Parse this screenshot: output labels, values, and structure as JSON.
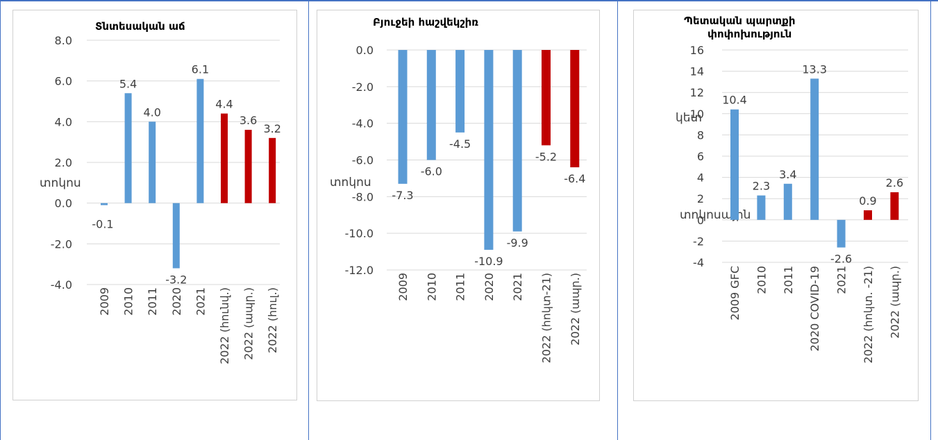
{
  "colors": {
    "blue": "#5b9bd5",
    "red": "#c00000",
    "grid": "#d9d9d9",
    "text": "#404040",
    "frame": "#4472c4"
  },
  "chart_data": [
    {
      "type": "bar",
      "title": "Տնտեսական աճ",
      "ylabel": "տոկոս",
      "ylim": [
        -4.0,
        8.0
      ],
      "yticks": [
        "-4.0",
        "-2.0",
        "0.0",
        "2.0",
        "4.0",
        "6.0",
        "8.0"
      ],
      "grid": true,
      "categories": [
        "2009",
        "2010",
        "2011",
        "2020",
        "2021",
        "2022 (հունվ.)",
        "2022 (ապր.)",
        "2022 (հուլ.)"
      ],
      "values": [
        -0.1,
        5.4,
        4.0,
        -3.2,
        6.1,
        4.4,
        3.6,
        3.2
      ],
      "value_labels": [
        "-0.1",
        "5.4",
        "4.0",
        "-3.2",
        "6.1",
        "4.4",
        "3.6",
        "3.2"
      ],
      "bar_colors": [
        "blue",
        "blue",
        "blue",
        "blue",
        "blue",
        "red",
        "red",
        "red"
      ]
    },
    {
      "type": "bar",
      "title": "Բյուջեի հաշվեկշիռ",
      "ylabel": "տոկոս",
      "ylim": [
        -12.0,
        0.0
      ],
      "yticks": [
        "-12.0",
        "-10.0",
        "-8.0",
        "-6.0",
        "-4.0",
        "-2.0",
        "0.0"
      ],
      "grid": true,
      "categories": [
        "2009",
        "2010",
        "2011",
        "2020",
        "2021",
        "2022 (հոկտ-21)",
        "2022 (ապր.)"
      ],
      "values": [
        -7.3,
        -6.0,
        -4.5,
        -10.9,
        -9.9,
        -5.2,
        -6.4
      ],
      "value_labels": [
        "-7.3",
        "-6.0",
        "-4.5",
        "-10.9",
        "-9.9",
        "-5.2",
        "-6.4"
      ],
      "bar_colors": [
        "blue",
        "blue",
        "blue",
        "blue",
        "blue",
        "red",
        "red"
      ]
    },
    {
      "type": "bar",
      "title": "Պետական պարտքի փոփոխություն",
      "ylabel": "կետ",
      "ylabel2": "տոկոսային",
      "ylim": [
        -4,
        16
      ],
      "yticks": [
        "-4",
        "-2",
        "0",
        "2",
        "4",
        "6",
        "8",
        "10",
        "12",
        "14",
        "16"
      ],
      "grid": true,
      "categories": [
        "2009 GFC",
        "2010",
        "2011",
        "2020 COVID-19",
        "2021",
        "2022 (հոկտ. -21)",
        "2022 (ապր.)"
      ],
      "values": [
        10.4,
        2.3,
        3.4,
        13.3,
        -2.6,
        0.9,
        2.6
      ],
      "value_labels": [
        "10.4",
        "2.3",
        "3.4",
        "13.3",
        "-2.6",
        "0.9",
        "2.6"
      ],
      "bar_colors": [
        "blue",
        "blue",
        "blue",
        "blue",
        "blue",
        "red",
        "red"
      ]
    }
  ]
}
